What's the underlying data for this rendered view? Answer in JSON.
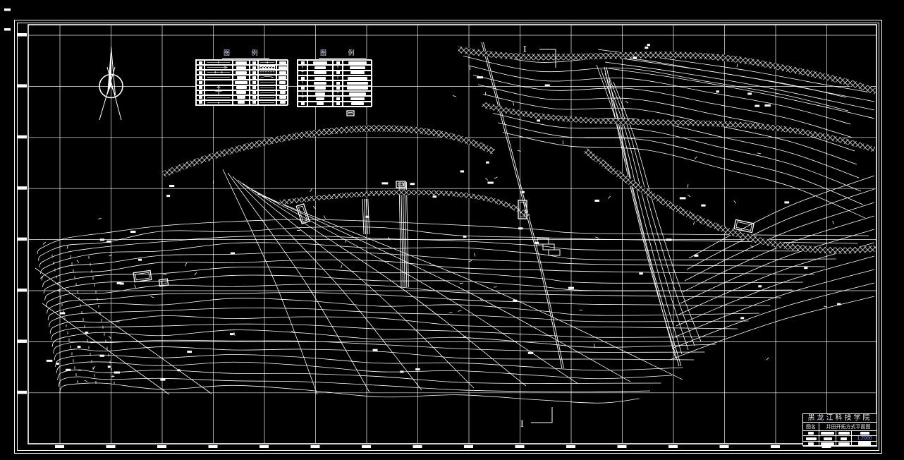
{
  "meta": {
    "background_color": "#000000",
    "line_color": "#ffffff",
    "accent_text_color": "#7fa8ff",
    "drawing_type": "CAD mine development plan"
  },
  "legend1": {
    "title": "图 例"
  },
  "legend2": {
    "title": "图 例"
  },
  "section_markers": {
    "top": "I",
    "bottom": "I"
  },
  "title_block": {
    "institution": "黑龙江科技学院",
    "drawing_name_label": "图名",
    "drawing_name": "井田开拓方式平面图",
    "scale": "1:2000"
  }
}
